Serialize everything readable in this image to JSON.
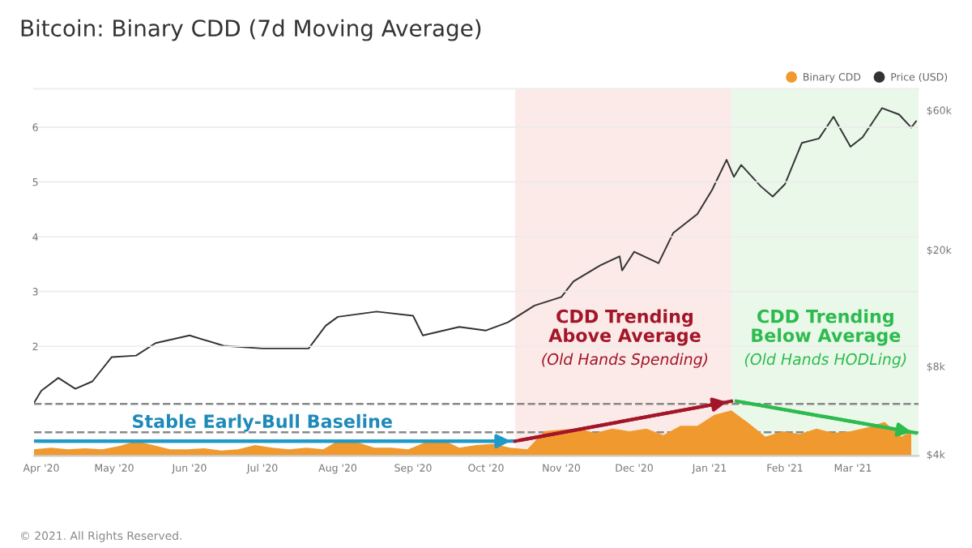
{
  "chart_data": {
    "type": "area",
    "title": "Bitcoin: Binary CDD (7d Moving Average)",
    "x": [
      "2020-03-29",
      "2020-04-05",
      "2020-04-12",
      "2020-04-19",
      "2020-04-26",
      "2020-05-03",
      "2020-05-10",
      "2020-05-17",
      "2020-05-24",
      "2020-05-31",
      "2020-06-07",
      "2020-06-14",
      "2020-06-21",
      "2020-06-28",
      "2020-07-05",
      "2020-07-12",
      "2020-07-19",
      "2020-07-26",
      "2020-08-02",
      "2020-08-09",
      "2020-08-16",
      "2020-08-23",
      "2020-08-30",
      "2020-09-06",
      "2020-09-13",
      "2020-09-20",
      "2020-09-27",
      "2020-10-04",
      "2020-10-11",
      "2020-10-18",
      "2020-10-25",
      "2020-11-01",
      "2020-11-08",
      "2020-11-15",
      "2020-11-22",
      "2020-11-29",
      "2020-12-06",
      "2020-12-13",
      "2020-12-20",
      "2020-12-27",
      "2021-01-03",
      "2021-01-10",
      "2021-01-17",
      "2021-01-24",
      "2021-01-31",
      "2021-02-07",
      "2021-02-14",
      "2021-02-21",
      "2021-02-28",
      "2021-03-07",
      "2021-03-14",
      "2021-03-21",
      "2021-03-25"
    ],
    "series": [
      {
        "name": "Binary CDD",
        "color": "#f0992e",
        "values": [
          0.12,
          0.15,
          0.12,
          0.14,
          0.12,
          0.18,
          0.27,
          0.2,
          0.12,
          0.12,
          0.14,
          0.1,
          0.12,
          0.2,
          0.15,
          0.12,
          0.15,
          0.12,
          0.3,
          0.25,
          0.15,
          0.15,
          0.12,
          0.25,
          0.3,
          0.15,
          0.2,
          0.22,
          0.15,
          0.12,
          0.45,
          0.48,
          0.5,
          0.42,
          0.5,
          0.45,
          0.5,
          0.38,
          0.55,
          0.55,
          0.75,
          0.83,
          0.6,
          0.35,
          0.45,
          0.4,
          0.5,
          0.42,
          0.45,
          0.52,
          0.62,
          0.35,
          0.45
        ]
      },
      {
        "name": "Price (USD)",
        "type": "line",
        "axis": "y2",
        "color": "#333333",
        "x": [
          "2020-03-29",
          "2020-04-01",
          "2020-04-08",
          "2020-04-15",
          "2020-04-22",
          "2020-04-30",
          "2020-05-10",
          "2020-05-18",
          "2020-06-01",
          "2020-06-15",
          "2020-07-01",
          "2020-07-20",
          "2020-07-27",
          "2020-08-01",
          "2020-08-17",
          "2020-09-01",
          "2020-09-05",
          "2020-09-20",
          "2020-10-01",
          "2020-10-10",
          "2020-10-21",
          "2020-11-01",
          "2020-11-06",
          "2020-11-17",
          "2020-11-25",
          "2020-11-26",
          "2020-12-01",
          "2020-12-11",
          "2020-12-17",
          "2020-12-27",
          "2021-01-02",
          "2021-01-08",
          "2021-01-11",
          "2021-01-14",
          "2021-01-22",
          "2021-01-27",
          "2021-02-01",
          "2021-02-08",
          "2021-02-15",
          "2021-02-21",
          "2021-02-28",
          "2021-03-05",
          "2021-03-13",
          "2021-03-20",
          "2021-03-25",
          "2021-03-27"
        ],
        "values": [
          6000,
          6600,
          7300,
          6700,
          7100,
          8600,
          8700,
          9600,
          10200,
          9400,
          9200,
          9200,
          11000,
          11800,
          12300,
          11900,
          10200,
          10900,
          10600,
          11300,
          12900,
          13800,
          15600,
          17700,
          19000,
          17000,
          19700,
          18000,
          22800,
          26500,
          32000,
          40600,
          35500,
          39000,
          33000,
          30400,
          33500,
          46400,
          48000,
          57000,
          45000,
          48500,
          61000,
          58000,
          52300,
          55000
        ]
      },
      {
        "type": "line",
        "color": "#1e9ac7",
        "x": [
          "2020-03-29",
          "2020-10-13"
        ],
        "values": [
          0.27,
          0.27
        ]
      },
      {
        "type": "line",
        "color": "#a3162a",
        "x": [
          "2020-10-13",
          "2021-01-10"
        ],
        "values": [
          0.27,
          1.0
        ]
      },
      {
        "type": "line",
        "color": "#2dbb4e",
        "x": [
          "2021-01-12",
          "2021-03-27"
        ],
        "values": [
          1.0,
          0.42
        ]
      }
    ],
    "xlim": [
      "2020-03-29",
      "2021-03-28"
    ],
    "xticks": [
      {
        "value": "2020-04-01",
        "label": "Apr '20"
      },
      {
        "value": "2020-05-01",
        "label": "May '20"
      },
      {
        "value": "2020-06-01",
        "label": "Jun '20"
      },
      {
        "value": "2020-07-01",
        "label": "Jul '20"
      },
      {
        "value": "2020-08-01",
        "label": "Aug '20"
      },
      {
        "value": "2020-09-01",
        "label": "Sep '20"
      },
      {
        "value": "2020-10-01",
        "label": "Oct '20"
      },
      {
        "value": "2020-11-01",
        "label": "Nov '20"
      },
      {
        "value": "2020-12-01",
        "label": "Dec '20"
      },
      {
        "value": "2021-01-01",
        "label": "Jan '21"
      },
      {
        "value": "2021-02-01",
        "label": "Feb '21"
      },
      {
        "value": "2021-03-01",
        "label": "Mar '21"
      }
    ],
    "ylim": [
      0,
      6.7
    ],
    "yticks": [
      2,
      3,
      4,
      5,
      6
    ],
    "log": "y2",
    "y2lim": [
      3950,
      71000
    ],
    "y2ticks": [
      {
        "value": 4000,
        "label": "$4k"
      },
      {
        "value": 8000,
        "label": "$8k"
      },
      {
        "value": 20000,
        "label": "$20k"
      },
      {
        "value": 60000,
        "label": "$60k"
      }
    ],
    "ref_lines": [
      {
        "axis": "y",
        "value": 0.95,
        "color": "#888888",
        "line_style": "dashed"
      },
      {
        "axis": "y",
        "value": 0.43,
        "color": "#888888",
        "line_style": "dashed"
      }
    ],
    "bands": [
      {
        "axis": "x",
        "from": "2020-10-13",
        "to": "2021-01-10",
        "color": "#fbeae7"
      },
      {
        "axis": "x",
        "from": "2021-01-10",
        "to": "2021-03-28",
        "color": "#eaf8ea"
      }
    ],
    "annotations": [
      "Stable Early-Bull Baseline",
      "CDD Trending\nAbove Average",
      "(Old Hands Spending)",
      "CDD Trending\nBelow Average",
      "(Old Hands HODLing)",
      "© 2021. All Rights Reserved."
    ],
    "grid": "y",
    "legend": "top right"
  }
}
